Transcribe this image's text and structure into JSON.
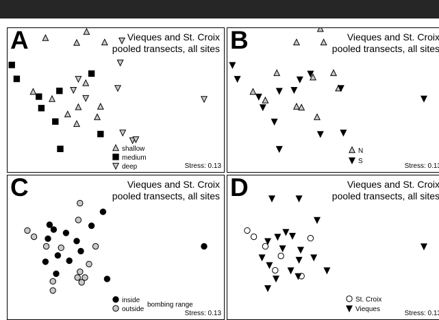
{
  "colors": {
    "black": "#000000",
    "gray": "#c8c8c8",
    "white": "#ffffff",
    "topbar": "#262626"
  },
  "chart_data": [
    {
      "panel": "A",
      "type": "scatter",
      "title_lines": [
        "Vieques and St. Croix",
        "pooled transects, all sites"
      ],
      "stress": "Stress: 0.13",
      "legend_title": "",
      "legend": [
        {
          "label": "shallow",
          "marker": "triangle-up",
          "fill": "gray"
        },
        {
          "label": "medium",
          "marker": "square",
          "fill": "black"
        },
        {
          "label": "deep",
          "marker": "triangle-down",
          "fill": "gray"
        }
      ],
      "series": [
        {
          "marker": "triangle-up",
          "fill": "gray",
          "points": [
            [
              0.17,
              0.35
            ],
            [
              0.07,
              1.09
            ],
            [
              0.32,
              0.98
            ],
            [
              0.05,
              0.12
            ],
            [
              0.39,
              0.13
            ],
            [
              -0.33,
              0.22
            ],
            [
              0.16,
              -0.72
            ],
            [
              -0.48,
              -0.9
            ],
            [
              -0.25,
              -1.05
            ],
            [
              -0.06,
              -1.37
            ],
            [
              0.05,
              -1.57
            ],
            [
              0.34,
              -1.21
            ],
            [
              0.07,
              -1.22
            ],
            [
              0.3,
              -1.43
            ]
          ]
        },
        {
          "marker": "square",
          "fill": "black",
          "points": [
            [
              -0.74,
              -0.34
            ],
            [
              -0.68,
              -0.63
            ],
            [
              -0.41,
              -1.0
            ],
            [
              -0.38,
              -1.24
            ],
            [
              -0.16,
              -0.88
            ],
            [
              0.23,
              -0.52
            ],
            [
              -0.21,
              -1.52
            ],
            [
              0.34,
              -1.78
            ],
            [
              -0.15,
              -2.09
            ]
          ]
        },
        {
          "marker": "triangle-down",
          "fill": "gray",
          "points": [
            [
              0.6,
              0.17
            ],
            [
              0.58,
              -0.29
            ],
            [
              0.55,
              -0.82
            ],
            [
              1.6,
              -1.05
            ],
            [
              0.07,
              -0.63
            ],
            [
              0.16,
              -1.03
            ],
            [
              0.01,
              -0.86
            ],
            [
              0.61,
              -1.75
            ],
            [
              0.73,
              -1.91
            ],
            [
              0.77,
              -1.89
            ]
          ]
        }
      ]
    },
    {
      "panel": "B",
      "type": "scatter",
      "title_lines": [
        "Vieques and St. Croix",
        "pooled transects, all sites"
      ],
      "stress": "Stress: 0.13",
      "legend_title": "",
      "legend": [
        {
          "label": "N",
          "marker": "triangle-up",
          "fill": "gray"
        },
        {
          "label": "S",
          "marker": "triangle-down",
          "fill": "black"
        }
      ],
      "series": [
        {
          "marker": "triangle-up",
          "fill": "gray",
          "points": [
            [
              0.34,
              0.41
            ],
            [
              0.08,
              1.1
            ],
            [
              0.3,
              0.99
            ],
            [
              0.05,
              0.13
            ],
            [
              0.38,
              0.13
            ],
            [
              -0.48,
              -0.9
            ],
            [
              -0.33,
              -1.08
            ],
            [
              0.05,
              -1.21
            ],
            [
              0.3,
              -1.43
            ],
            [
              -0.19,
              -0.51
            ],
            [
              0.25,
              -0.6
            ],
            [
              0.5,
              -0.51
            ],
            [
              0.56,
              -0.83
            ],
            [
              0.11,
              -1.23
            ]
          ]
        },
        {
          "marker": "triangle-down",
          "fill": "black",
          "points": [
            [
              -0.73,
              -0.34
            ],
            [
              -0.67,
              -0.63
            ],
            [
              -0.41,
              -1.0
            ],
            [
              -0.36,
              -1.22
            ],
            [
              -0.16,
              -0.88
            ],
            [
              0.22,
              -0.52
            ],
            [
              -0.22,
              -1.52
            ],
            [
              0.34,
              -1.78
            ],
            [
              -0.16,
              -2.09
            ],
            [
              0.59,
              -0.82
            ],
            [
              1.6,
              -1.04
            ],
            [
              0.09,
              -0.64
            ],
            [
              0.02,
              -0.86
            ],
            [
              0.62,
              -1.75
            ]
          ]
        }
      ]
    },
    {
      "panel": "C",
      "type": "scatter",
      "title_lines": [
        "Vieques and St. Croix",
        "pooled transects, all sites"
      ],
      "stress": "Stress: 0.13",
      "legend_title": "bombing range",
      "legend": [
        {
          "label": "inside",
          "marker": "circle",
          "fill": "black"
        },
        {
          "label": "outside",
          "marker": "circle",
          "fill": "gray"
        }
      ],
      "series": [
        {
          "marker": "circle",
          "fill": "black",
          "points": [
            [
              0.1,
              1.0
            ],
            [
              -0.28,
              -0.6
            ],
            [
              -0.23,
              -0.7
            ],
            [
              -0.08,
              -0.77
            ],
            [
              0.05,
              -0.94
            ],
            [
              -0.3,
              -0.89
            ],
            [
              -0.04,
              -1.35
            ],
            [
              0.23,
              -0.62
            ],
            [
              0.37,
              -0.33
            ],
            [
              -0.33,
              -1.37
            ],
            [
              -0.18,
              -1.24
            ],
            [
              0.1,
              -1.15
            ],
            [
              0.42,
              -1.73
            ],
            [
              1.6,
              -1.05
            ],
            [
              -0.2,
              -1.62
            ]
          ]
        },
        {
          "marker": "circle",
          "fill": "gray",
          "points": [
            [
              0.09,
              -0.15
            ],
            [
              -0.55,
              -0.72
            ],
            [
              -0.47,
              -0.85
            ],
            [
              -0.32,
              -1.05
            ],
            [
              -0.14,
              -1.08
            ],
            [
              0.07,
              -0.5
            ],
            [
              0.28,
              -1.05
            ],
            [
              0.2,
              -1.42
            ],
            [
              0.09,
              -1.58
            ],
            [
              0.15,
              -1.7
            ],
            [
              -0.24,
              -1.78
            ],
            [
              -0.24,
              -1.97
            ],
            [
              0.06,
              -1.7
            ],
            [
              0.11,
              -1.8
            ]
          ]
        }
      ]
    },
    {
      "panel": "D",
      "type": "scatter",
      "title_lines": [
        "Vieques and St. Croix",
        "pooled transects, all sites"
      ],
      "stress": "Stress: 0.13",
      "legend_title": "",
      "legend": [
        {
          "label": "St. Croix",
          "marker": "circle",
          "fill": "white"
        },
        {
          "label": "Vieques",
          "marker": "triangle-down",
          "fill": "black"
        }
      ],
      "series": [
        {
          "marker": "circle",
          "fill": "white",
          "points": [
            [
              -0.55,
              -0.72
            ],
            [
              -0.47,
              -0.85
            ],
            [
              -0.33,
              -1.05
            ],
            [
              0.22,
              -0.88
            ],
            [
              -0.14,
              -1.25
            ],
            [
              -0.21,
              -1.55
            ],
            [
              0.11,
              -1.67
            ]
          ]
        },
        {
          "marker": "triangle-down",
          "fill": "black",
          "points": [
            [
              0.1,
              1.0
            ],
            [
              -0.25,
              -0.05
            ],
            [
              0.08,
              -0.05
            ],
            [
              -0.3,
              -0.94
            ],
            [
              -0.18,
              -0.85
            ],
            [
              -0.08,
              -0.75
            ],
            [
              0.0,
              -0.83
            ],
            [
              0.3,
              -0.5
            ],
            [
              -0.37,
              -1.28
            ],
            [
              -0.12,
              -1.09
            ],
            [
              0.1,
              -1.12
            ],
            [
              0.26,
              -1.28
            ],
            [
              0.08,
              -1.33
            ],
            [
              0.42,
              -1.55
            ],
            [
              -0.28,
              -1.44
            ],
            [
              -0.02,
              -1.55
            ],
            [
              -0.2,
              -1.72
            ],
            [
              0.07,
              -1.67
            ],
            [
              1.6,
              -1.05
            ],
            [
              -0.3,
              -1.92
            ]
          ]
        }
      ]
    }
  ]
}
